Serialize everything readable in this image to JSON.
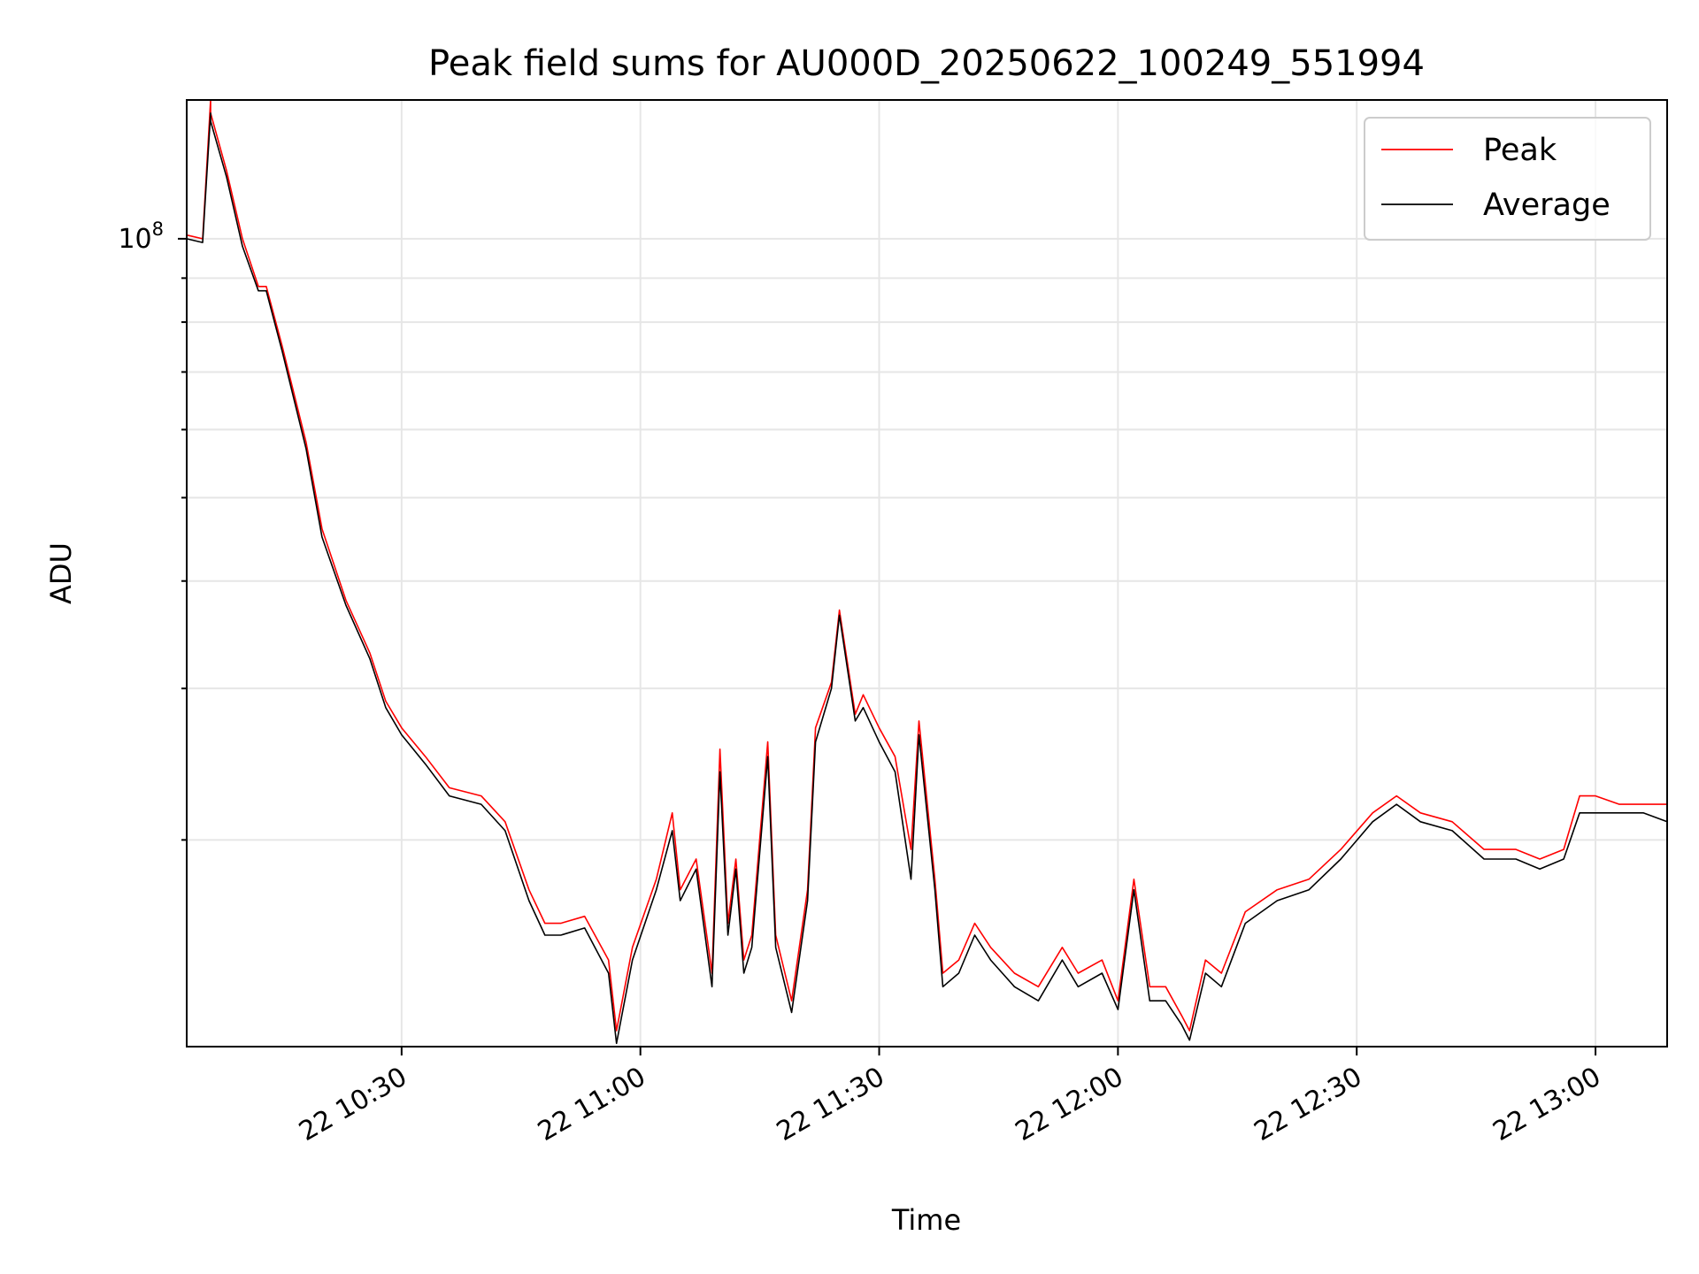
{
  "chart_data": {
    "type": "line",
    "title": "Peak field sums for AU000D_20250622_100249_551994",
    "xlabel": "Time",
    "ylabel": "ADU",
    "y_scale": "log",
    "x_unit": "time of day on the 22nd",
    "xlim": [
      "10:03",
      "13:09"
    ],
    "ylim": [
      11500000,
      145000000
    ],
    "x_ticks": [
      "22 10:30",
      "22 11:00",
      "22 11:30",
      "22 12:00",
      "22 12:30",
      "22 13:00"
    ],
    "y_ticks": [
      "10^8"
    ],
    "grid": true,
    "legend_position": "top-right",
    "series": [
      {
        "name": "Peak",
        "color": "#ff0000",
        "x": [
          "10:03",
          "10:05",
          "10:06",
          "10:06",
          "10:08",
          "10:10",
          "10:12",
          "10:13",
          "10:15",
          "10:18",
          "10:20",
          "10:23",
          "10:26",
          "10:28",
          "10:30",
          "10:33",
          "10:36",
          "10:40",
          "10:43",
          "10:46",
          "10:48",
          "10:50",
          "10:53",
          "10:56",
          "10:57",
          "10:59",
          "11:02",
          "11:04",
          "11:05",
          "11:07",
          "11:09",
          "11:10",
          "11:11",
          "11:12",
          "11:13",
          "11:14",
          "11:16",
          "11:17",
          "11:19",
          "11:21",
          "11:22",
          "11:24",
          "11:25",
          "11:27",
          "11:28",
          "11:30",
          "11:32",
          "11:34",
          "11:35",
          "11:37",
          "11:38",
          "11:40",
          "11:42",
          "11:44",
          "11:47",
          "11:50",
          "11:53",
          "11:55",
          "11:58",
          "12:00",
          "12:02",
          "12:04",
          "12:06",
          "12:08",
          "12:09",
          "12:11",
          "12:13",
          "12:16",
          "12:20",
          "12:24",
          "12:28",
          "12:32",
          "12:35",
          "12:38",
          "12:42",
          "12:46",
          "12:50",
          "12:53",
          "12:56",
          "12:58",
          "13:00",
          "13:03",
          "13:06",
          "13:09"
        ],
        "values": [
          101000000,
          100000000,
          145000000,
          140000000,
          120000000,
          100000000,
          88000000,
          88000000,
          75000000,
          58000000,
          46000000,
          38000000,
          33000000,
          29000000,
          27000000,
          25000000,
          23000000,
          22500000,
          21000000,
          17500000,
          16000000,
          16000000,
          16300000,
          14500000,
          12000000,
          15000000,
          18000000,
          21500000,
          17500000,
          19000000,
          14000000,
          25500000,
          16000000,
          19000000,
          14500000,
          15500000,
          26000000,
          15500000,
          13000000,
          17500000,
          27000000,
          30500000,
          37000000,
          28000000,
          29500000,
          27000000,
          25000000,
          19500000,
          27500000,
          18000000,
          14000000,
          14500000,
          16000000,
          15000000,
          14000000,
          13500000,
          15000000,
          14000000,
          14500000,
          13000000,
          18000000,
          13500000,
          13500000,
          12500000,
          12000000,
          14500000,
          14000000,
          16500000,
          17500000,
          18000000,
          19500000,
          21500000,
          22500000,
          21500000,
          21000000,
          19500000,
          19500000,
          19000000,
          19500000,
          22500000,
          22500000,
          22000000,
          22000000,
          22000000
        ]
      },
      {
        "name": "Average",
        "color": "#000000",
        "x": [
          "10:03",
          "10:05",
          "10:06",
          "10:06",
          "10:08",
          "10:10",
          "10:12",
          "10:13",
          "10:15",
          "10:18",
          "10:20",
          "10:23",
          "10:26",
          "10:28",
          "10:30",
          "10:33",
          "10:36",
          "10:40",
          "10:43",
          "10:46",
          "10:48",
          "10:50",
          "10:53",
          "10:56",
          "10:57",
          "10:59",
          "11:02",
          "11:04",
          "11:05",
          "11:07",
          "11:09",
          "11:10",
          "11:11",
          "11:12",
          "11:13",
          "11:14",
          "11:16",
          "11:17",
          "11:19",
          "11:21",
          "11:22",
          "11:24",
          "11:25",
          "11:27",
          "11:28",
          "11:30",
          "11:32",
          "11:34",
          "11:35",
          "11:37",
          "11:38",
          "11:40",
          "11:42",
          "11:44",
          "11:47",
          "11:50",
          "11:53",
          "11:55",
          "11:58",
          "12:00",
          "12:02",
          "12:04",
          "12:06",
          "12:08",
          "12:09",
          "12:11",
          "12:13",
          "12:16",
          "12:20",
          "12:24",
          "12:28",
          "12:32",
          "12:35",
          "12:38",
          "12:42",
          "12:46",
          "12:50",
          "12:53",
          "12:56",
          "12:58",
          "13:00",
          "13:03",
          "13:06",
          "13:09"
        ],
        "values": [
          100000000,
          99000000,
          140000000,
          137000000,
          118000000,
          98000000,
          87000000,
          87000000,
          74000000,
          57000000,
          45000000,
          37500000,
          32500000,
          28500000,
          26500000,
          24500000,
          22500000,
          22000000,
          20500000,
          17000000,
          15500000,
          15500000,
          15800000,
          14000000,
          11600000,
          14500000,
          17500000,
          20500000,
          17000000,
          18500000,
          13500000,
          24000000,
          15500000,
          18500000,
          14000000,
          15000000,
          25000000,
          15000000,
          12600000,
          17000000,
          26000000,
          30000000,
          36500000,
          27500000,
          28500000,
          26000000,
          24000000,
          18000000,
          26500000,
          17500000,
          13500000,
          14000000,
          15500000,
          14500000,
          13500000,
          13000000,
          14500000,
          13500000,
          14000000,
          12700000,
          17500000,
          13000000,
          13000000,
          12200000,
          11700000,
          14000000,
          13500000,
          16000000,
          17000000,
          17500000,
          19000000,
          21000000,
          22000000,
          21000000,
          20500000,
          19000000,
          19000000,
          18500000,
          19000000,
          21500000,
          21500000,
          21500000,
          21500000,
          21000000
        ]
      }
    ]
  }
}
